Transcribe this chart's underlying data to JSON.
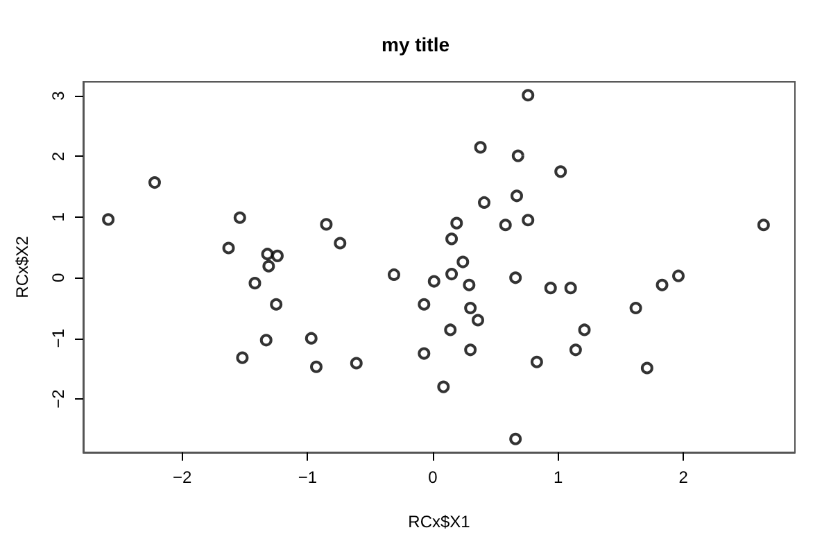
{
  "chart_data": {
    "type": "scatter",
    "title": "my title",
    "xlabel": "RCx$X1",
    "ylabel": "RCx$X2",
    "xlim": [
      -2.79,
      2.89
    ],
    "xticks": [
      -2,
      -1,
      0,
      1,
      2
    ],
    "ylim": [
      -2.88,
      3.23
    ],
    "yticks": [
      -2,
      -1,
      0,
      1,
      2,
      3
    ],
    "marker": "circle",
    "series": [
      {
        "color": "#000000",
        "x": [
          -2.59,
          -2.22,
          -1.54,
          -1.63,
          -0.85,
          -0.74,
          -1.32,
          -1.24,
          -1.31,
          -1.42,
          -1.25,
          -0.31,
          -1.33,
          -1.52,
          -0.97,
          -0.93,
          -0.61,
          0.76,
          0.38,
          0.68,
          1.02,
          0.41,
          0.67,
          0.19,
          0.58,
          0.76,
          2.64,
          0.15,
          0.24,
          0.15,
          0.01,
          0.29,
          0.66,
          0.94,
          1.1,
          1.96,
          1.83,
          1.62,
          -0.07,
          0.3,
          0.36,
          0.14,
          1.21,
          -0.07,
          0.3,
          1.14,
          0.83,
          1.71,
          0.085,
          0.66
        ],
        "values": [
          0.96,
          1.57,
          0.99,
          0.49,
          0.88,
          0.57,
          0.39,
          0.36,
          0.19,
          -0.09,
          -0.44,
          0.05,
          -1.03,
          -1.32,
          -1.0,
          -1.47,
          -1.41,
          3.01,
          2.15,
          2.01,
          1.75,
          1.24,
          1.35,
          0.9,
          0.87,
          0.95,
          0.87,
          0.64,
          0.26,
          0.06,
          -0.06,
          -0.12,
          0.0,
          -0.17,
          -0.17,
          0.03,
          -0.12,
          -0.5,
          -0.44,
          -0.5,
          -0.7,
          -0.86,
          -0.86,
          -1.25,
          -1.19,
          -1.19,
          -1.39,
          -1.49,
          -1.8,
          -2.66
        ]
      }
    ]
  }
}
